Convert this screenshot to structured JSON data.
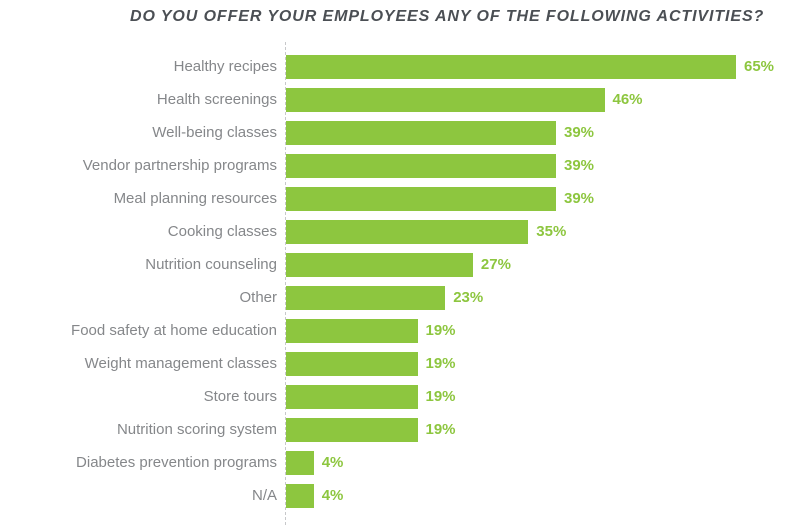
{
  "chart_data": {
    "type": "bar",
    "orientation": "horizontal",
    "title": "DO YOU OFFER YOUR EMPLOYEES ANY OF THE FOLLOWING ACTIVITIES?",
    "categories": [
      "Healthy recipes",
      "Health screenings",
      "Well-being classes",
      "Vendor partnership programs",
      "Meal planning resources",
      "Cooking classes",
      "Nutrition counseling",
      "Other",
      "Food safety at home education",
      "Weight management classes",
      "Store tours",
      "Nutrition scoring system",
      "Diabetes prevention programs",
      "N/A"
    ],
    "values": [
      65,
      46,
      39,
      39,
      39,
      35,
      27,
      23,
      19,
      19,
      19,
      19,
      4,
      4
    ],
    "value_suffix": "%",
    "xlim": [
      0,
      65
    ],
    "grid": false,
    "legend": false,
    "axis_line_style": "dashed-vertical-at-zero",
    "colors": {
      "bar": "#8DC63F",
      "value_label": "#8DC63F",
      "category_label": "#85878A",
      "title": "#4B4F54",
      "axis_line": "#C7C8CA",
      "background": "#FFFFFF"
    }
  }
}
